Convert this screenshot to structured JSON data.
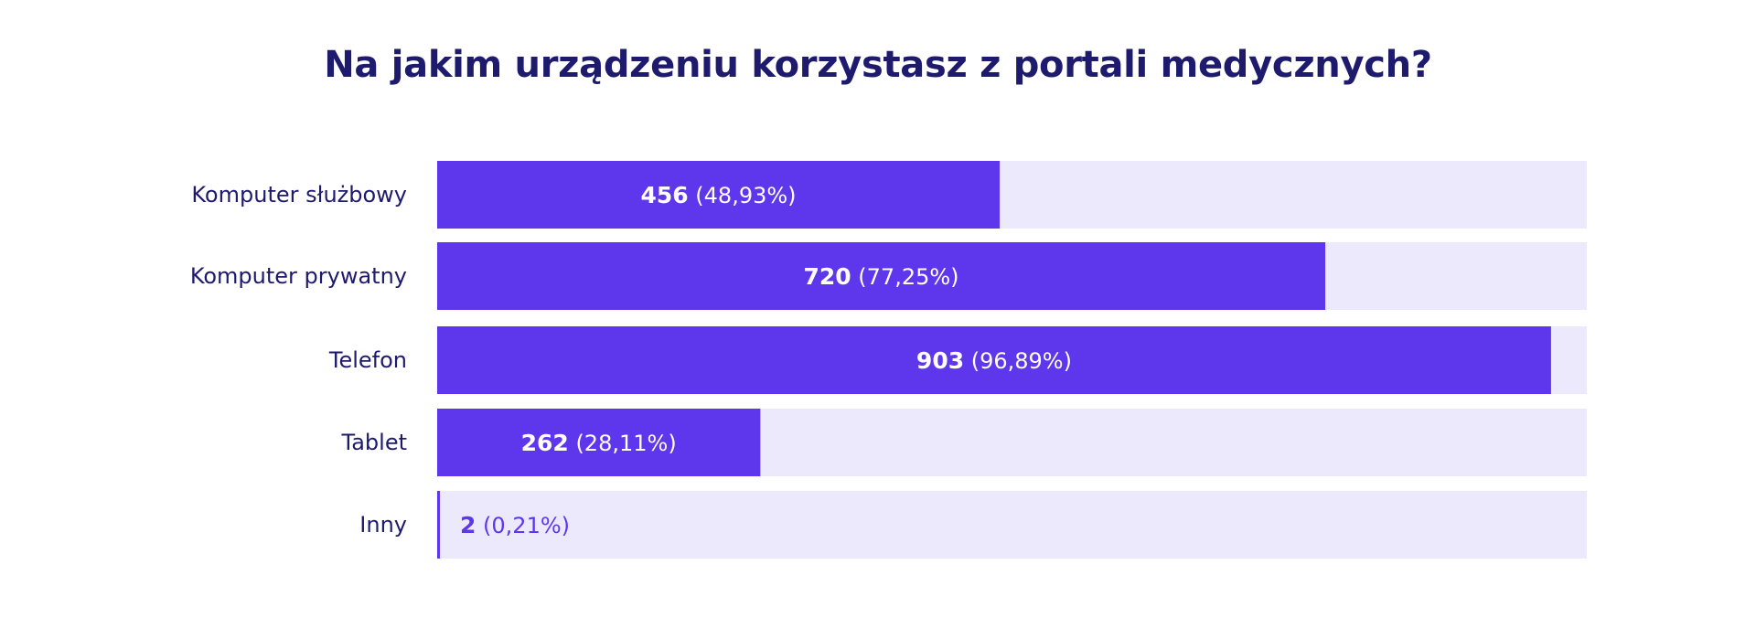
{
  "chart_data": {
    "type": "bar",
    "orientation": "horizontal",
    "title": "Na jakim urządzeniu korzystasz z portali medycznych?",
    "categories": [
      "Komputer służbowy",
      "Komputer prywatny",
      "Telefon",
      "Tablet",
      "Inny"
    ],
    "values": [
      456,
      720,
      903,
      262,
      2
    ],
    "percentages": [
      48.93,
      77.25,
      96.89,
      28.11,
      0.21
    ],
    "value_labels": [
      "456",
      "720",
      "903",
      "262",
      "2"
    ],
    "percent_labels": [
      "(48,93%)",
      "(77,25%)",
      "(96,89%)",
      "(28,11%)",
      "(0,21%)"
    ],
    "xlim_percent": [
      0,
      100
    ],
    "grid": false,
    "legend": "none",
    "colors": {
      "bar": "#5e37ed",
      "track": "#ece9fd",
      "title": "#1e1a6e",
      "label": "#1e1a6e",
      "value_inside": "#ffffff",
      "value_outside": "#5e37ed"
    }
  }
}
